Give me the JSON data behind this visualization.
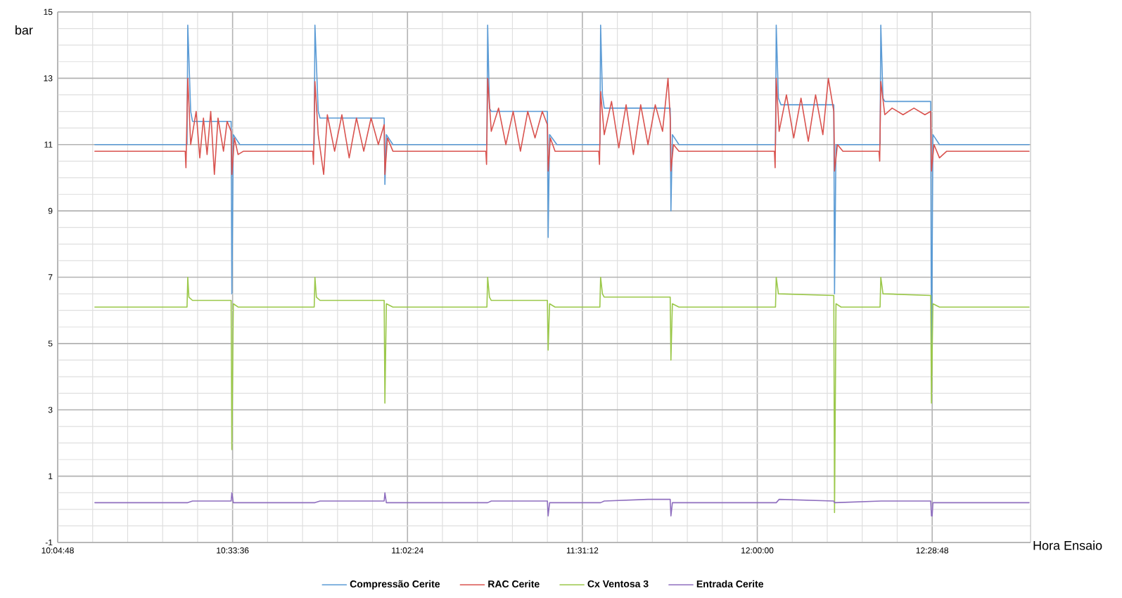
{
  "chart_data": {
    "type": "line",
    "xlabel": "Hora Ensaio",
    "ylabel": "bar",
    "xlim": [
      10.08,
      12.75
    ],
    "ylim": [
      -1,
      15
    ],
    "xticks": [
      {
        "value": 10.08,
        "label": "10:04:48"
      },
      {
        "value": 10.56,
        "label": "10:33:36"
      },
      {
        "value": 11.04,
        "label": "11:02:24"
      },
      {
        "value": 11.52,
        "label": "11:31:12"
      },
      {
        "value": 12.0,
        "label": "12:00:00"
      },
      {
        "value": 12.48,
        "label": "12:28:48"
      }
    ],
    "yticks": [
      -1,
      1,
      3,
      5,
      7,
      9,
      11,
      13,
      15
    ],
    "grid": true,
    "legend": "bottom",
    "marker": "none",
    "line_style": "solid",
    "series": [
      {
        "name": "Compressão Cerite",
        "color": "#5b9bd5",
        "x": [
          10.182,
          10.435,
          10.437,
          10.445,
          10.45,
          10.556,
          10.558,
          10.562,
          10.58,
          10.784,
          10.786,
          10.795,
          10.8,
          10.976,
          10.978,
          10.982,
          11.0,
          11.258,
          11.26,
          11.265,
          11.27,
          11.424,
          11.426,
          11.43,
          11.45,
          11.568,
          11.57,
          11.575,
          11.58,
          11.761,
          11.763,
          11.767,
          11.785,
          12.05,
          12.052,
          12.058,
          12.065,
          12.21,
          12.212,
          12.216,
          12.337,
          12.339,
          12.345,
          12.35,
          12.476,
          12.478,
          12.482,
          12.5,
          12.746
        ],
        "values": [
          11.0,
          11.0,
          14.6,
          12.0,
          11.7,
          11.7,
          6.5,
          11.3,
          11.0,
          11.0,
          14.6,
          12.0,
          11.8,
          11.8,
          9.8,
          11.3,
          11.0,
          11.0,
          14.6,
          12.1,
          12.0,
          12.0,
          8.2,
          11.3,
          11.0,
          11.0,
          14.6,
          12.5,
          12.1,
          12.1,
          9.0,
          11.3,
          11.0,
          11.0,
          14.6,
          12.4,
          12.2,
          12.2,
          6.5,
          11.0,
          11.0,
          14.6,
          12.4,
          12.3,
          12.3,
          3.9,
          11.3,
          11.0,
          11.0
        ]
      },
      {
        "name": "RAC Cerite",
        "color": "#d9534f",
        "x": [
          10.182,
          10.43,
          10.432,
          10.437,
          10.445,
          10.46,
          10.47,
          10.48,
          10.49,
          10.5,
          10.51,
          10.52,
          10.535,
          10.545,
          10.556,
          10.558,
          10.565,
          10.575,
          10.59,
          10.78,
          10.782,
          10.786,
          10.795,
          10.81,
          10.82,
          10.84,
          10.86,
          10.88,
          10.9,
          10.92,
          10.94,
          10.96,
          10.976,
          10.978,
          10.985,
          11.0,
          11.255,
          11.257,
          11.26,
          11.27,
          11.29,
          11.31,
          11.33,
          11.35,
          11.37,
          11.39,
          11.41,
          11.424,
          11.426,
          11.432,
          11.445,
          11.565,
          11.567,
          11.57,
          11.58,
          11.6,
          11.62,
          11.64,
          11.66,
          11.68,
          11.7,
          11.72,
          11.74,
          11.755,
          11.761,
          11.763,
          11.77,
          11.785,
          12.047,
          12.049,
          12.052,
          12.06,
          12.08,
          12.1,
          12.12,
          12.14,
          12.16,
          12.18,
          12.195,
          12.21,
          12.212,
          12.22,
          12.235,
          12.334,
          12.336,
          12.339,
          12.35,
          12.37,
          12.4,
          12.43,
          12.46,
          12.476,
          12.478,
          12.485,
          12.5,
          12.52,
          12.746
        ],
        "values": [
          10.8,
          10.8,
          10.3,
          13.0,
          11.0,
          12.0,
          10.6,
          11.8,
          10.7,
          12.0,
          10.1,
          11.8,
          10.8,
          11.7,
          11.4,
          10.1,
          11.2,
          10.7,
          10.8,
          10.8,
          10.4,
          12.9,
          11.3,
          10.1,
          11.9,
          10.8,
          11.9,
          10.6,
          11.8,
          10.8,
          11.8,
          11.0,
          11.6,
          10.1,
          11.2,
          10.8,
          10.8,
          10.4,
          13.0,
          11.4,
          12.1,
          11.0,
          12.0,
          10.8,
          12.0,
          11.2,
          12.0,
          11.6,
          10.2,
          11.2,
          10.8,
          10.8,
          10.4,
          12.6,
          11.3,
          12.3,
          10.9,
          12.2,
          10.7,
          12.2,
          11.0,
          12.2,
          11.4,
          13.0,
          11.8,
          10.2,
          11.0,
          10.8,
          10.8,
          10.3,
          13.0,
          11.4,
          12.5,
          11.2,
          12.4,
          11.1,
          12.5,
          11.3,
          13.0,
          12.0,
          10.2,
          11.0,
          10.8,
          10.8,
          10.5,
          12.9,
          11.9,
          12.1,
          11.9,
          12.1,
          11.9,
          12.0,
          10.2,
          11.0,
          10.6,
          10.8,
          10.8
        ]
      },
      {
        "name": "Cx Ventosa 3",
        "color": "#9bc84a",
        "x": [
          10.182,
          10.435,
          10.437,
          10.44,
          10.45,
          10.556,
          10.558,
          10.562,
          10.575,
          10.784,
          10.786,
          10.79,
          10.8,
          10.976,
          10.978,
          10.982,
          11.0,
          11.258,
          11.26,
          11.265,
          11.27,
          11.424,
          11.426,
          11.43,
          11.445,
          11.568,
          11.57,
          11.575,
          11.58,
          11.761,
          11.763,
          11.767,
          11.785,
          12.05,
          12.052,
          12.058,
          12.21,
          12.212,
          12.216,
          12.23,
          12.337,
          12.339,
          12.345,
          12.476,
          12.478,
          12.482,
          12.5,
          12.746
        ],
        "values": [
          6.1,
          6.1,
          7.0,
          6.4,
          6.3,
          6.3,
          1.8,
          6.2,
          6.1,
          6.1,
          7.0,
          6.4,
          6.3,
          6.3,
          3.2,
          6.2,
          6.1,
          6.1,
          7.0,
          6.4,
          6.3,
          6.3,
          4.8,
          6.2,
          6.1,
          6.1,
          7.0,
          6.5,
          6.4,
          6.4,
          4.5,
          6.2,
          6.1,
          6.1,
          7.0,
          6.5,
          6.45,
          -0.1,
          6.2,
          6.1,
          6.1,
          7.0,
          6.5,
          6.45,
          3.2,
          6.2,
          6.1,
          6.1
        ]
      },
      {
        "name": "Entrada Cerite",
        "color": "#8f6fbf",
        "x": [
          10.182,
          10.437,
          10.45,
          10.556,
          10.558,
          10.562,
          10.786,
          10.8,
          10.976,
          10.978,
          10.982,
          11.26,
          11.27,
          11.424,
          11.426,
          11.43,
          11.57,
          11.58,
          11.7,
          11.761,
          11.763,
          11.767,
          12.052,
          12.06,
          12.21,
          12.212,
          12.34,
          12.476,
          12.478,
          12.48,
          12.482,
          12.746
        ],
        "values": [
          0.2,
          0.2,
          0.25,
          0.25,
          0.5,
          0.2,
          0.2,
          0.25,
          0.25,
          0.5,
          0.2,
          0.2,
          0.25,
          0.25,
          -0.2,
          0.2,
          0.2,
          0.25,
          0.3,
          0.3,
          -0.2,
          0.2,
          0.2,
          0.3,
          0.25,
          0.2,
          0.25,
          0.25,
          -0.2,
          -0.2,
          0.2,
          0.2
        ]
      }
    ]
  }
}
